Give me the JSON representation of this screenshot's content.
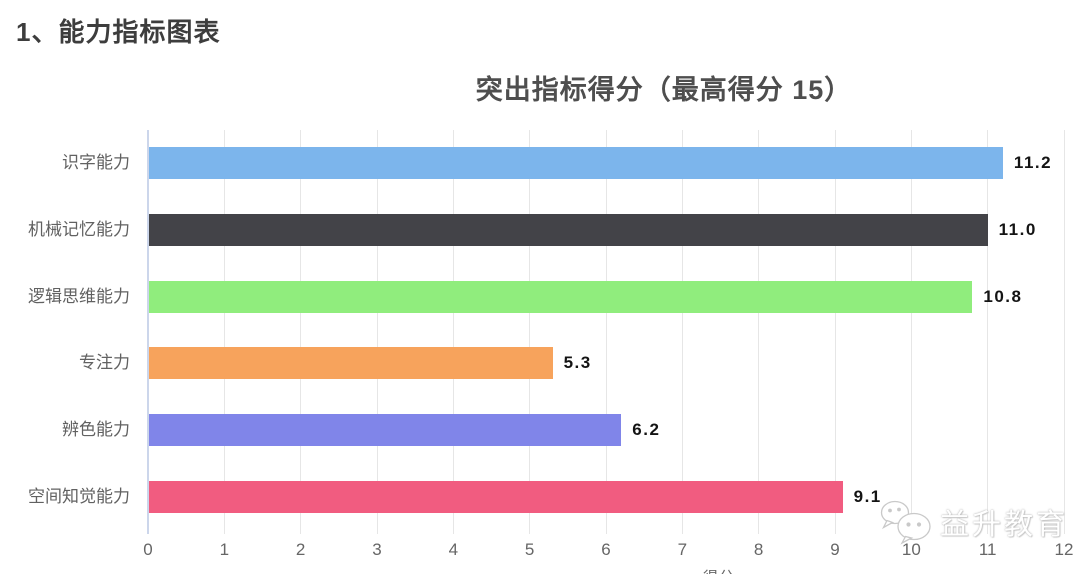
{
  "page": {
    "heading": "1、能力指标图表",
    "watermark": {
      "icon": "wechat-icon",
      "text": "益升教育"
    }
  },
  "chart_data": {
    "type": "bar",
    "orientation": "horizontal",
    "title": "突出指标得分（最高得分 15）",
    "categories": [
      "识字能力",
      "机械记忆能力",
      "逻辑思维能力",
      "专注力",
      "辨色能力",
      "空间知觉能力"
    ],
    "values": [
      11.2,
      11.0,
      10.8,
      5.3,
      6.2,
      9.1
    ],
    "data_labels": [
      "11.2",
      "11.0",
      "10.8",
      "5.3",
      "6.2",
      "9.1"
    ],
    "bar_colors": [
      "#7cb5ec",
      "#434348",
      "#90ed7d",
      "#f7a35c",
      "#8085e9",
      "#f15c80"
    ],
    "xlabel": "得分",
    "ylabel": "",
    "xlim": [
      0,
      12
    ],
    "x_ticks": [
      0,
      1,
      2,
      3,
      4,
      5,
      6,
      7,
      8,
      9,
      10,
      11,
      12
    ],
    "max_score": 15,
    "grid": true,
    "legend": false,
    "grid_color": "#e6e6e6",
    "axis_line_color": "#ccd6eb",
    "value_label_color": "#141414",
    "category_label_color": "#616161"
  }
}
